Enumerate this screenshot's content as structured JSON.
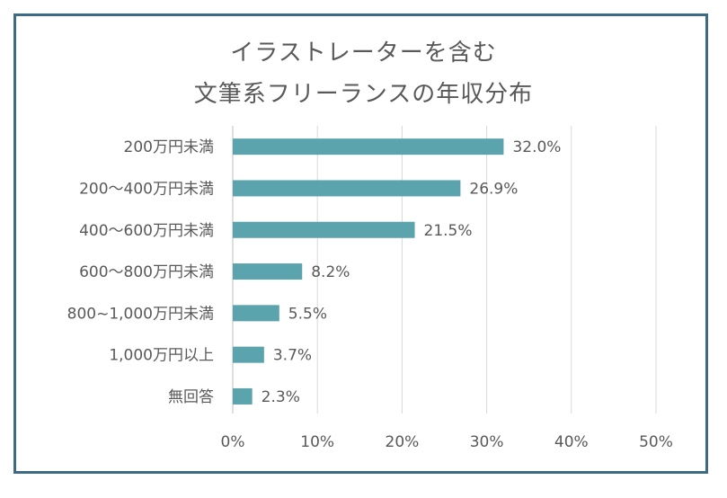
{
  "chart_data": {
    "type": "bar",
    "orientation": "horizontal",
    "title_lines": [
      "イラストレーターを含む",
      "文筆系フリーランスの年収分布"
    ],
    "categories": [
      "200万円未満",
      "200～400万円未満",
      "400～600万円未満",
      "600～800万円未満",
      "800~1,000万円未満",
      "1,000万円以上",
      "無回答"
    ],
    "values": [
      32.0,
      26.9,
      21.5,
      8.2,
      5.5,
      3.7,
      2.3
    ],
    "value_labels": [
      "32.0%",
      "26.9%",
      "21.5%",
      "8.2%",
      "5.5%",
      "3.7%",
      "2.3%"
    ],
    "x_ticks": [
      "0%",
      "10%",
      "20%",
      "30%",
      "40%",
      "50%"
    ],
    "xlim": [
      0,
      50
    ],
    "grid": "vertical",
    "bar_color": "#5ba3ad",
    "frame_color": "#3d6b86"
  }
}
